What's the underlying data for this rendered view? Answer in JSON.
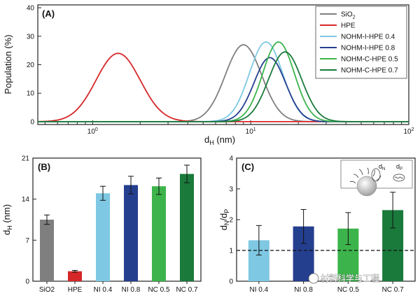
{
  "chart_data": [
    {
      "panel": "(A)",
      "type": "line",
      "xlabel_base": "d",
      "xlabel_sub": "H",
      "xlabel_unit": " (nm)",
      "ylabel": "Population (%)",
      "xscale": "log",
      "xlim": [
        0.45,
        100
      ],
      "ylim": [
        -1,
        41
      ],
      "xticks": [
        1,
        10,
        100
      ],
      "xtick_base": "10",
      "xtick_exps": [
        "0",
        "1",
        "2"
      ],
      "yticks": [
        0,
        10,
        20,
        30,
        40
      ],
      "legend_position": "top-right",
      "series": [
        {
          "name": "SiO",
          "name_sub": "2",
          "color": "#7f7f7f",
          "peak_x": 9.0,
          "peak_y": 27.0,
          "width": 0.115
        },
        {
          "name": "HPE",
          "color": "#d62728",
          "peak_x": 1.45,
          "peak_y": 24.0,
          "width": 0.14
        },
        {
          "name": "NOHM-I-HPE 0.4",
          "color": "#7ec8e3",
          "peak_x": 12.5,
          "peak_y": 28.0,
          "width": 0.105
        },
        {
          "name": "NOHM-I-HPE 0.8",
          "color": "#253f8f",
          "peak_x": 13.2,
          "peak_y": 22.5,
          "width": 0.1
        },
        {
          "name": "NOHM-C-HPE 0.5",
          "color": "#3cb44b",
          "peak_x": 15.0,
          "peak_y": 28.0,
          "width": 0.1
        },
        {
          "name": "NOHM-C-HPE 0.7",
          "color": "#1a7a3c",
          "peak_x": 16.5,
          "peak_y": 24.5,
          "width": 0.105
        }
      ]
    },
    {
      "panel": "(B)",
      "type": "bar",
      "ylabel_base": "d",
      "ylabel_sub": "H",
      "ylabel_unit": " (nm)",
      "ylim": [
        0,
        21
      ],
      "yticks": [
        0,
        7,
        14,
        21
      ],
      "categories": [
        "SiO2",
        "HPE",
        "NI 0.4",
        "NI 0.8",
        "NC 0.5",
        "NC 0.7"
      ],
      "values": [
        10.5,
        1.7,
        15.0,
        16.4,
        16.2,
        18.3
      ],
      "errors": [
        0.8,
        0.15,
        1.2,
        1.5,
        1.4,
        1.5
      ],
      "colors": [
        "#7f7f7f",
        "#d62728",
        "#7ec8e3",
        "#253f8f",
        "#3cb44b",
        "#1a7a3c"
      ]
    },
    {
      "panel": "(C)",
      "type": "bar",
      "ylabel_base": "d",
      "ylabel_sub1": "N",
      "ylabel_mid": "/d",
      "ylabel_sub2": "P",
      "ylim": [
        0,
        4
      ],
      "yticks": [
        0,
        1,
        2,
        3,
        4
      ],
      "reference_line": 1,
      "categories": [
        "NI 0.4",
        "NI 0.8",
        "NC 0.5",
        "NC 0.7"
      ],
      "values": [
        1.33,
        1.78,
        1.71,
        2.31
      ],
      "errors": [
        0.48,
        0.55,
        0.52,
        0.58
      ],
      "colors": [
        "#7ec8e3",
        "#253f8f",
        "#3cb44b",
        "#1a7a3c"
      ],
      "inset_label_n": "d",
      "inset_label_n_sub": "N",
      "inset_label_p": "d",
      "inset_label_p_sub": "P"
    }
  ],
  "watermark": "材料科学与工程"
}
